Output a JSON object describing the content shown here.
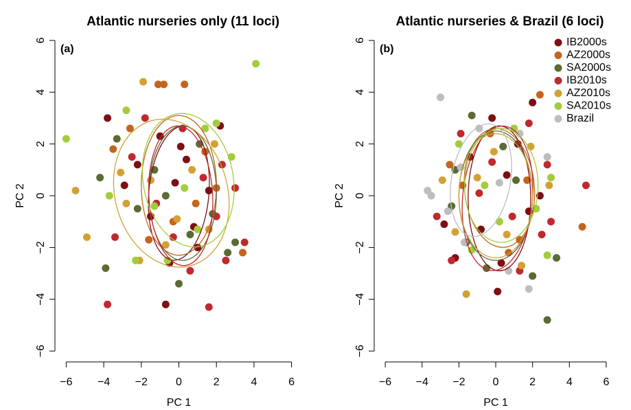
{
  "chart_data": [
    {
      "type": "scatter",
      "title": "Atlantic nurseries only (11 loci)",
      "panel_label": "(a)",
      "x_label": "PC 1",
      "y_label": "PC 2",
      "xlim": [
        -6.6,
        6.6
      ],
      "ylim": [
        -6.5,
        6.5
      ],
      "xticks": [
        {
          "value": -6,
          "label": "−6"
        },
        {
          "value": -4,
          "label": "−4"
        },
        {
          "value": -2,
          "label": "−2"
        },
        0,
        2,
        4,
        6
      ],
      "yticks": [
        {
          "value": -6,
          "label": "−6"
        },
        {
          "value": -4,
          "label": "−4"
        },
        {
          "value": -2,
          "label": "−2"
        },
        0,
        2,
        4,
        6
      ],
      "series": [
        {
          "color": "#7d0f12",
          "x": [
            -3.8,
            -2.2,
            -1.5,
            -0.7,
            -0.2,
            0.4,
            1.0,
            1.6,
            -1.0,
            0.8,
            2.2,
            -0.5,
            0.1,
            -2.9
          ],
          "values": [
            3.0,
            1.2,
            -0.8,
            -4.2,
            0.5,
            1.4,
            -2.0,
            0.2,
            2.3,
            -1.2,
            2.7,
            -2.6,
            1.9,
            0.4
          ],
          "ellipse": {
            "cx": 0,
            "cy": 0.1,
            "rx": 1.6,
            "ry": 2.6,
            "angle": -5
          }
        },
        {
          "color": "#c4651c",
          "x": [
            -0.8,
            0.3,
            -1.1,
            -2.6,
            1.4,
            -0.3,
            2.0,
            -1.6,
            0.9,
            3.4,
            -3.5
          ],
          "values": [
            4.3,
            4.3,
            4.3,
            2.6,
            1.7,
            -1.0,
            0.3,
            -1.7,
            -0.3,
            -2.2,
            1.8
          ],
          "ellipse": {
            "cx": 0,
            "cy": 0.4,
            "rx": 2,
            "ry": 2.7,
            "angle": 0
          }
        },
        {
          "color": "#5a6b33",
          "x": [
            -3.9,
            0.0,
            3.0,
            -4.2,
            -1.3,
            0.6,
            1.8,
            -0.7,
            -3.3,
            2.6,
            1.1,
            -2.2
          ],
          "values": [
            -2.8,
            -3.4,
            -1.8,
            0.7,
            1.0,
            -1.5,
            -0.7,
            0.0,
            2.2,
            -2.2,
            2.0,
            -0.5
          ],
          "ellipse": {
            "cx": 0.2,
            "cy": 0.1,
            "rx": 1.8,
            "ry": 2.6,
            "angle": 0
          }
        },
        {
          "color": "#c1282f",
          "x": [
            -3.8,
            1.6,
            3.5,
            2.5,
            -3.4,
            -2.5,
            -1.2,
            0.2,
            1.3,
            2.3,
            -0.3,
            -1.8,
            0.6,
            2.0,
            3.0
          ],
          "values": [
            -4.2,
            -4.3,
            -1.8,
            -2.5,
            -1.6,
            1.5,
            -0.3,
            2.6,
            0.7,
            1.2,
            -1.6,
            3.0,
            -2.9,
            -0.8,
            0.3
          ],
          "ellipse": {
            "cx": 0.1,
            "cy": 0,
            "rx": 1.7,
            "ry": 2.7,
            "angle": 3
          }
        },
        {
          "color": "#d3a034",
          "x": [
            -5.5,
            -4.9,
            -1.9,
            -2.1,
            -0.7,
            0.7,
            -1.5,
            1.6,
            -2.8,
            1.9,
            -0.1,
            -3.1
          ],
          "values": [
            0.2,
            -1.6,
            4.4,
            -2.5,
            -1.9,
            1.0,
            0.6,
            -1.3,
            -0.3,
            2.0,
            -0.9,
            0.9
          ],
          "ellipse": {
            "cx": -0.4,
            "cy": 0.1,
            "rx": 3.0,
            "ry": 2.9,
            "angle": 15
          }
        },
        {
          "color": "#a2cc3a",
          "x": [
            -6.0,
            4.1,
            -2.8,
            1.4,
            2.0,
            -1.3,
            0.3,
            -0.6,
            2.8,
            -2.3,
            1.0,
            -3.7
          ],
          "values": [
            2.2,
            5.1,
            3.3,
            2.6,
            2.8,
            -0.4,
            0.3,
            -2.5,
            1.5,
            -2.5,
            -1.3,
            0.0
          ],
          "ellipse": {
            "cx": 0.5,
            "cy": 0.6,
            "rx": 2.4,
            "ry": 2.6,
            "angle": 10
          }
        }
      ]
    },
    {
      "type": "scatter",
      "title": "Atlantic nurseries & Brazil (6 loci)",
      "panel_label": "(b)",
      "x_label": "PC 1",
      "y_label": "PC 2",
      "xlim": [
        -6.6,
        6.6
      ],
      "ylim": [
        -6.5,
        6.5
      ],
      "legend": "topright",
      "xticks": [
        {
          "value": -6,
          "label": "−6"
        },
        {
          "value": -4,
          "label": "−4"
        },
        {
          "value": -2,
          "label": "−2"
        },
        0,
        2,
        4,
        6
      ],
      "yticks": [
        {
          "value": -6,
          "label": "−6"
        },
        {
          "value": -4,
          "label": "−4"
        },
        {
          "value": -2,
          "label": "−2"
        },
        0,
        2,
        4,
        6
      ],
      "series": [
        {
          "name": "IB2000s",
          "color": "#7d0f12",
          "x": [
            0.1,
            2.0,
            -0.2,
            1.8,
            -1.4,
            -2.2,
            0.6,
            -0.8,
            1.2,
            -2.8,
            2.4,
            0.3
          ],
          "values": [
            -3.7,
            3.6,
            3.0,
            -0.6,
            1.5,
            -2.4,
            0.8,
            -1.3,
            2.0,
            -1.1,
            0.0,
            -2.6
          ],
          "ellipse": {
            "cx": 0.2,
            "cy": -0.1,
            "rx": 1.7,
            "ry": 2.8,
            "angle": 0
          }
        },
        {
          "name": "AZ2000s",
          "color": "#c4651c",
          "x": [
            4.7,
            2.4,
            -0.3,
            1.3,
            -1.8,
            0.7,
            -2.5,
            1.7
          ],
          "values": [
            -1.2,
            3.9,
            2.4,
            -1.7,
            0.4,
            -2.2,
            1.2,
            0.6
          ],
          "ellipse": {
            "cx": 0.2,
            "cy": 0.3,
            "rx": 1.9,
            "ry": 2.3,
            "angle": 5
          }
        },
        {
          "name": "SA2000s",
          "color": "#5a6b33",
          "x": [
            2.8,
            -1.3,
            -2.2,
            -0.5,
            1.1,
            2.0,
            -1.6,
            0.4,
            3.3,
            -2.4
          ],
          "values": [
            -4.8,
            3.1,
            1.0,
            -2.8,
            0.6,
            -3.1,
            -1.8,
            1.9,
            -2.4,
            -0.4
          ],
          "ellipse": {
            "cx": 0,
            "cy": 0,
            "rx": 2.0,
            "ry": 2.5,
            "angle": 0
          }
        },
        {
          "name": "IB2010s",
          "color": "#c1282f",
          "x": [
            4.9,
            1.8,
            2.8,
            -2.4,
            -0.9,
            0.9,
            -1.9,
            1.3,
            -3.2,
            2.5,
            -0.2,
            3.0
          ],
          "values": [
            0.4,
            2.8,
            1.2,
            -2.5,
            0.1,
            -0.8,
            2.4,
            -2.9,
            -0.8,
            -1.5,
            1.3,
            -1.0
          ],
          "ellipse": {
            "cx": 0.1,
            "cy": -0.1,
            "rx": 1.9,
            "ry": 2.8,
            "angle": -5
          }
        },
        {
          "name": "AZ2010s",
          "color": "#d3a034",
          "x": [
            -1.6,
            1.4,
            -0.1,
            2.9,
            -2.2,
            0.6,
            -1.0,
            1.9,
            -2.9
          ],
          "values": [
            -3.8,
            -2.7,
            1.7,
            0.4,
            -1.4,
            -1.5,
            0.7,
            1.9,
            0.6
          ],
          "ellipse": {
            "cx": 0,
            "cy": 0,
            "rx": 2.0,
            "ry": 2.4,
            "angle": 0
          }
        },
        {
          "name": "SA2010s",
          "color": "#a2cc3a",
          "x": [
            2.8,
            -2.0,
            0.2,
            1.0,
            -0.6,
            2.2,
            -1.3,
            3.0
          ],
          "values": [
            -2.3,
            2.0,
            -1.0,
            2.6,
            0.4,
            -0.5,
            -2.1,
            0.7
          ],
          "ellipse": {
            "cx": 0.3,
            "cy": 0.4,
            "rx": 2.0,
            "ry": 2.2,
            "angle": 0
          }
        },
        {
          "name": "Brazil",
          "color": "#bdbdbd",
          "x": [
            -3.0,
            -3.7,
            -3.5,
            1.8,
            -1.7,
            -0.9,
            1.3,
            -1.9,
            0.7,
            2.8,
            -2.6,
            0.2
          ],
          "values": [
            3.8,
            0.2,
            0.0,
            -3.6,
            -1.8,
            2.6,
            2.4,
            1.1,
            -2.9,
            1.5,
            -0.6,
            0.5
          ],
          "ellipse": {
            "cx": -0.8,
            "cy": 0.6,
            "rx": 1.6,
            "ry": 2.2,
            "angle": -10
          }
        }
      ]
    }
  ]
}
